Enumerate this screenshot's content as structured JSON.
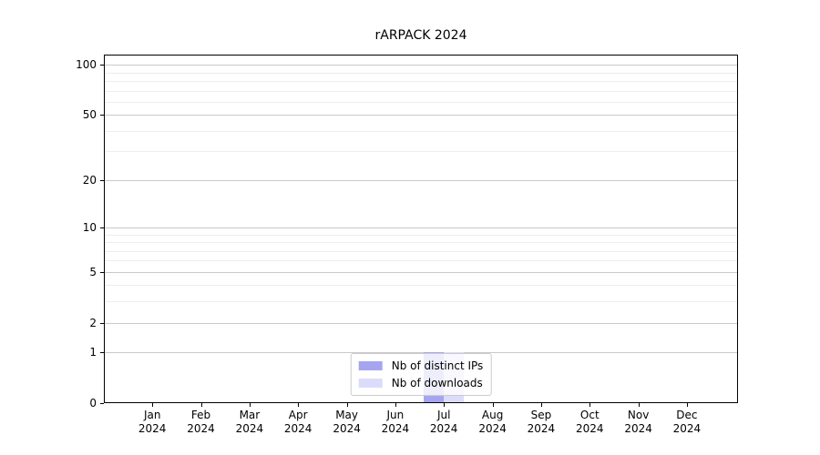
{
  "title": "rARPACK 2024",
  "chart_data": {
    "type": "bar",
    "title": "rARPACK 2024",
    "categories": [
      "Jan 2024",
      "Feb 2024",
      "Mar 2024",
      "Apr 2024",
      "May 2024",
      "Jun 2024",
      "Jul 2024",
      "Aug 2024",
      "Sep 2024",
      "Oct 2024",
      "Nov 2024",
      "Dec 2024"
    ],
    "series": [
      {
        "name": "Nb of distinct IPs",
        "color": "#a5a5ef",
        "values": [
          0,
          0,
          0,
          0,
          0,
          0,
          1,
          0,
          0,
          0,
          0,
          0
        ]
      },
      {
        "name": "Nb of downloads",
        "color": "#dbdbfa",
        "values": [
          0,
          0,
          0,
          0,
          0,
          0,
          1,
          0,
          0,
          0,
          0,
          0
        ]
      }
    ],
    "xlabel": "",
    "ylabel": "",
    "yscale": "log1p",
    "ylim": [
      0,
      115
    ],
    "yticks": [
      0,
      1,
      2,
      5,
      10,
      20,
      50,
      100
    ],
    "yticks_minor": [
      3,
      4,
      6,
      7,
      8,
      9,
      30,
      40,
      60,
      70,
      80,
      90
    ],
    "grid": "horizontal",
    "legend_position": "lower center",
    "colors": {
      "major_grid": "#c9c9c9",
      "minor_grid": "#ededed",
      "spine": "#000000",
      "background": "#ffffff"
    }
  }
}
